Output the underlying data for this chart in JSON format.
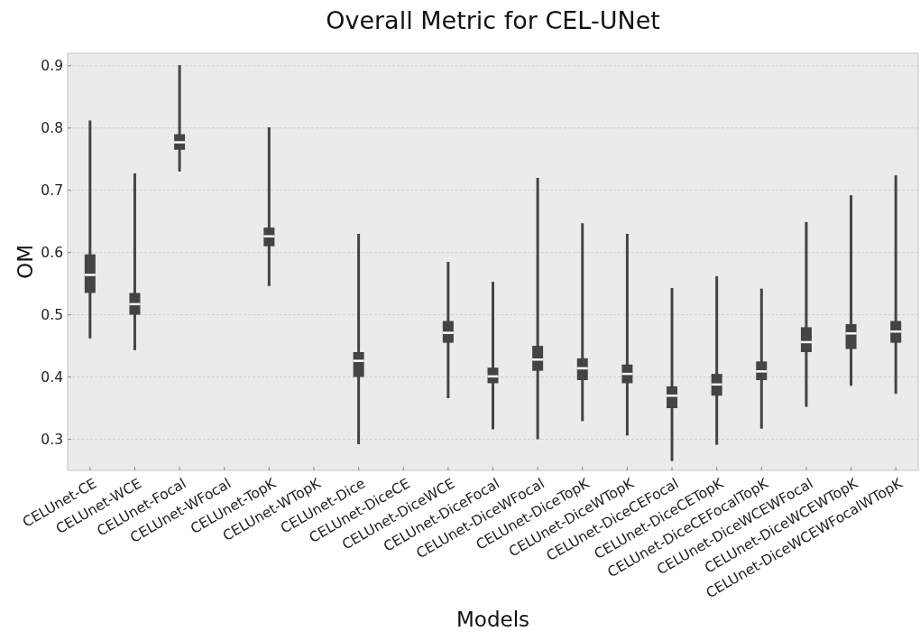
{
  "chart_data": {
    "type": "box",
    "title": "Overall Metric for CEL-UNet",
    "xlabel": "Models",
    "ylabel": "OM",
    "categories": [
      "CELUnet-CE",
      "CELUnet-WCE",
      "CELUnet-Focal",
      "CELUnet-WFocal",
      "CELUnet-TopK",
      "CELUnet-WTopK",
      "CELUnet-Dice",
      "CELUnet-DiceCE",
      "CELUnet-DiceWCE",
      "CELUnet-DiceFocal",
      "CELUnet-DiceWFocal",
      "CELUnet-DiceTopK",
      "CELUnet-DiceWTopK",
      "CELUnet-DiceCEFocal",
      "CELUnet-DiceCETopK",
      "CELUnet-DiceCEFocalTopK",
      "CELUnet-DiceWCEWFocal",
      "CELUnet-DiceWCEWTopK",
      "CELUnet-DiceWCEWFocalWTopK"
    ],
    "series": [
      {
        "color": "#444444",
        "boxes": [
          {
            "low": 0.462,
            "q1": 0.535,
            "median": 0.564,
            "q3": 0.597,
            "high": 0.812
          },
          {
            "low": 0.443,
            "q1": 0.5,
            "median": 0.517,
            "q3": 0.535,
            "high": 0.727
          },
          {
            "low": 0.73,
            "q1": 0.765,
            "median": 0.777,
            "q3": 0.79,
            "high": 0.901
          },
          null,
          {
            "low": 0.546,
            "q1": 0.61,
            "median": 0.626,
            "q3": 0.64,
            "high": 0.801
          },
          null,
          {
            "low": 0.292,
            "q1": 0.4,
            "median": 0.426,
            "q3": 0.44,
            "high": 0.63
          },
          null,
          {
            "low": 0.366,
            "q1": 0.455,
            "median": 0.471,
            "q3": 0.49,
            "high": 0.585
          },
          {
            "low": 0.316,
            "q1": 0.39,
            "median": 0.401,
            "q3": 0.415,
            "high": 0.553
          },
          {
            "low": 0.3,
            "q1": 0.41,
            "median": 0.428,
            "q3": 0.45,
            "high": 0.72
          },
          {
            "low": 0.329,
            "q1": 0.395,
            "median": 0.414,
            "q3": 0.43,
            "high": 0.647
          },
          {
            "low": 0.306,
            "q1": 0.39,
            "median": 0.405,
            "q3": 0.42,
            "high": 0.63
          },
          {
            "low": 0.265,
            "q1": 0.35,
            "median": 0.37,
            "q3": 0.385,
            "high": 0.543
          },
          {
            "low": 0.291,
            "q1": 0.37,
            "median": 0.388,
            "q3": 0.405,
            "high": 0.562
          },
          {
            "low": 0.317,
            "q1": 0.395,
            "median": 0.409,
            "q3": 0.425,
            "high": 0.542
          },
          {
            "low": 0.352,
            "q1": 0.44,
            "median": 0.456,
            "q3": 0.48,
            "high": 0.649
          },
          {
            "low": 0.386,
            "q1": 0.445,
            "median": 0.47,
            "q3": 0.485,
            "high": 0.692
          },
          {
            "low": 0.373,
            "q1": 0.455,
            "median": 0.473,
            "q3": 0.49,
            "high": 0.724
          }
        ]
      }
    ],
    "ylim": [
      0.25,
      0.92
    ],
    "yticks": [
      0.3,
      0.4,
      0.5,
      0.6,
      0.7,
      0.8,
      0.9
    ],
    "grid": "y"
  }
}
